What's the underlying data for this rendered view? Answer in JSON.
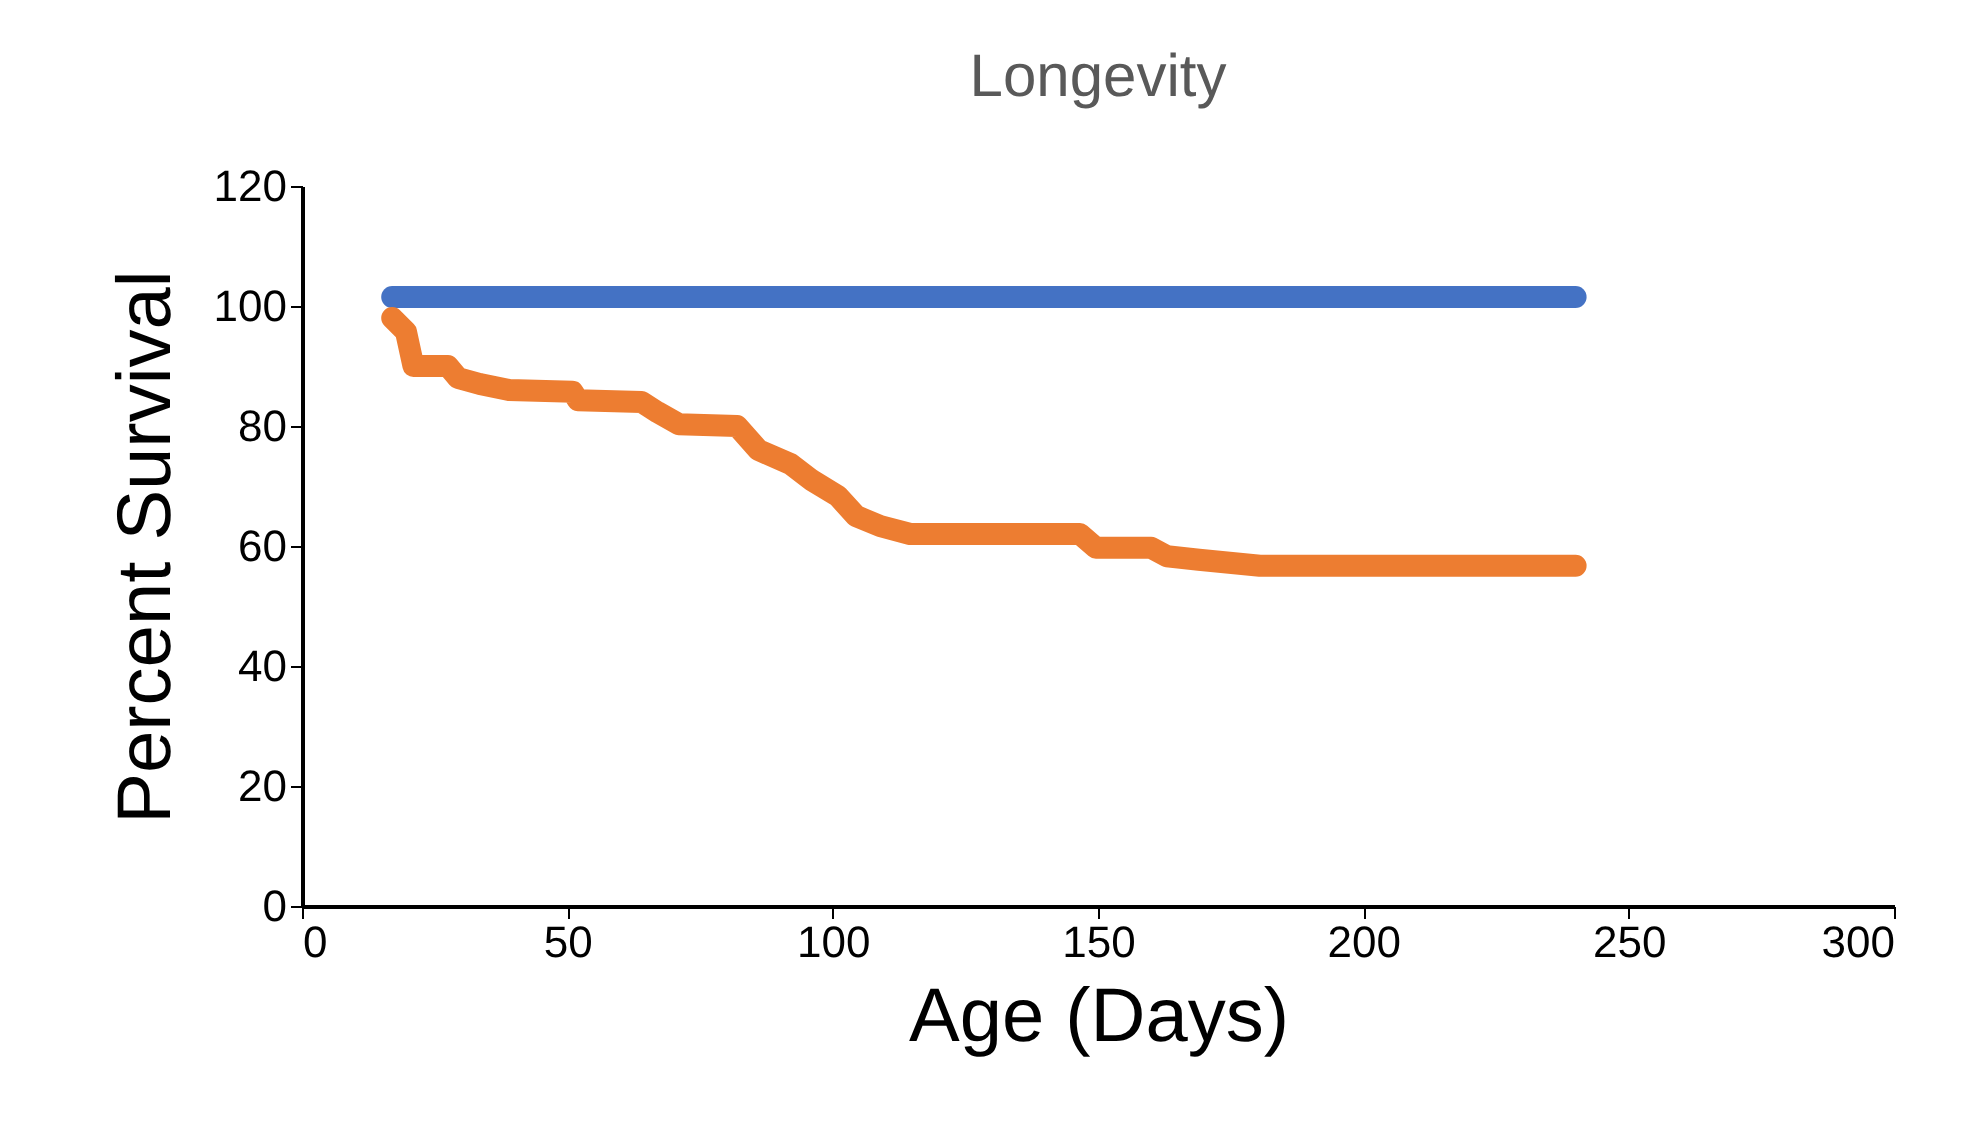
{
  "chart_data": {
    "type": "line",
    "title": "Longevity",
    "xlabel": "Age (Days)",
    "ylabel": "Percent Survival",
    "xlim": [
      0,
      300
    ],
    "xticks": [
      0,
      50,
      100,
      150,
      200,
      250,
      300
    ],
    "ylim": [
      0,
      120
    ],
    "yticks": [
      0,
      20,
      40,
      60,
      80,
      100,
      120
    ],
    "grid": false,
    "series": [
      {
        "color": "#4472c4",
        "x": [
          17,
          240
        ],
        "values": [
          101.5,
          101.5
        ]
      },
      {
        "color": "#ed7d31",
        "x": [
          17,
          19.6,
          21,
          27.5,
          29.4,
          33.5,
          39,
          51,
          52,
          64,
          67,
          71,
          82,
          86,
          92,
          96,
          101,
          104.4,
          109,
          114.6,
          146.6,
          149.6,
          160,
          163,
          169,
          180.5,
          240
        ],
        "values": [
          98,
          95.7,
          90,
          90,
          88,
          87,
          86,
          85.7,
          84.3,
          84,
          82.3,
          80.3,
          80,
          76,
          73.7,
          71,
          68.3,
          65,
          63.3,
          62,
          62,
          59.7,
          59.7,
          58.3,
          57.7,
          56.7,
          56.7
        ]
      }
    ]
  }
}
